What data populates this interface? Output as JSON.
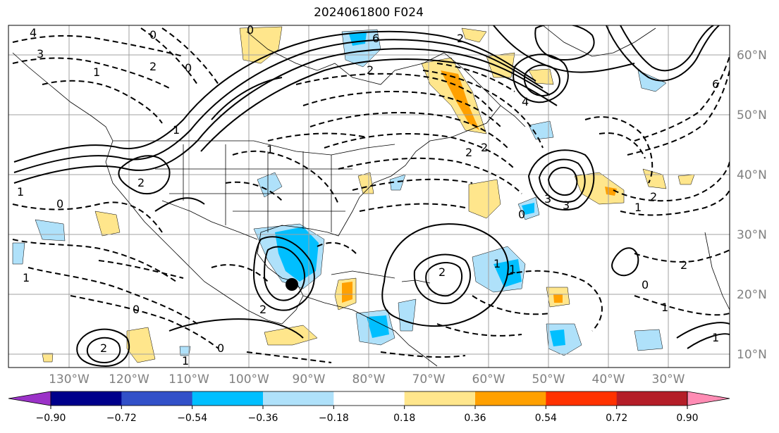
{
  "title": "2024061800 F024",
  "lat_labels": [
    "60°N",
    "50°N",
    "40°N",
    "30°N",
    "20°N",
    "10°N"
  ],
  "lon_labels": [
    "130°W",
    "120°W",
    "110°W",
    "100°W",
    "90°W",
    "80°W",
    "70°W",
    "60°W",
    "50°W",
    "40°W",
    "30°W"
  ],
  "colorbar": {
    "ticks": [
      "−0.90",
      "−0.72",
      "−0.54",
      "−0.36",
      "−0.18",
      "0.18",
      "0.36",
      "0.54",
      "0.72",
      "0.90"
    ],
    "colors": [
      "#9b32c8",
      "#00008b",
      "#3250c8",
      "#00bfff",
      "#afe1fa",
      "#ffffff",
      "#ffe68c",
      "#ffa000",
      "#ff3200",
      "#b41e28",
      "#ff8cb4"
    ]
  },
  "contour_labels": [
    "4",
    "3",
    "2",
    "1",
    "0",
    "6",
    "2",
    "1",
    "0",
    "2",
    "3",
    "1",
    "2",
    "0",
    "1",
    "0",
    "1",
    "2",
    "0",
    "2",
    "1",
    "2",
    "1",
    "0",
    "1",
    "2",
    "2",
    "0",
    "1",
    "3",
    "2",
    "1",
    "0",
    "2",
    "6",
    "4",
    "1"
  ],
  "colors": {
    "contour": "#000000",
    "border": "#000000",
    "grid": "#a0a0a0",
    "storm_marker": "#000000"
  }
}
